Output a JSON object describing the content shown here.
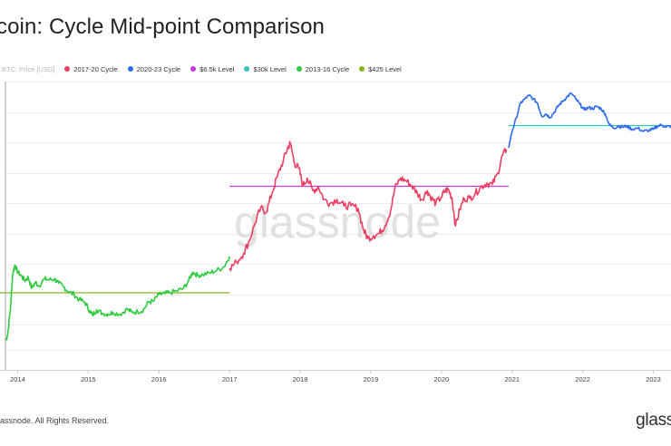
{
  "title": "coin: Cycle Mid-point Comparison",
  "watermark": "glassnode",
  "footer": {
    "copyright": "lassnode. All Rights Reserved.",
    "logo": "glass"
  },
  "colors": {
    "cycle_2017_20": "#ee3e62",
    "cycle_2020_23": "#2f6cf0",
    "level_6_5k": "#c23bd4",
    "level_30k": "#35c2c0",
    "cycle_2013_16": "#2ecb3e",
    "level_425": "#86b51a"
  },
  "legend": [
    {
      "label": "BTC: Price [USD]",
      "color": "#cccccc",
      "muted": true
    },
    {
      "label": "2017-20 Cycle",
      "color": "#ee3e62"
    },
    {
      "label": "2020-23 Cycle",
      "color": "#2f6cf0"
    },
    {
      "label": "$6.5k Level",
      "color": "#c23bd4"
    },
    {
      "label": "$30k Level",
      "color": "#35c2c0"
    },
    {
      "label": "2013-16 Cycle",
      "color": "#2ecb3e"
    },
    {
      "label": "$425 Level",
      "color": "#86b51a"
    }
  ],
  "chart_data": {
    "type": "line",
    "title": "coin: Cycle Mid-point Comparison",
    "x_axis_labels": [
      "2014",
      "2015",
      "2016",
      "2017",
      "2018",
      "2019",
      "2020",
      "2021",
      "2022",
      "2023"
    ],
    "x_range": [
      2013.75,
      2023.25
    ],
    "y_scale": "log",
    "y_tick_labels": [],
    "grid": true,
    "legend_position": "top-left",
    "series": [
      {
        "name": "2013-16 Cycle",
        "color": "#2ecb3e",
        "points": [
          [
            2013.83,
            0.02
          ],
          [
            2013.86,
            0.1
          ],
          [
            2013.9,
            0.42
          ],
          [
            2013.93,
            0.8
          ],
          [
            2013.96,
            0.9
          ],
          [
            2014.0,
            0.82
          ],
          [
            2014.05,
            0.78
          ],
          [
            2014.1,
            0.72
          ],
          [
            2014.15,
            0.76
          ],
          [
            2014.2,
            0.63
          ],
          [
            2014.25,
            0.7
          ],
          [
            2014.3,
            0.66
          ],
          [
            2014.38,
            0.74
          ],
          [
            2014.45,
            0.73
          ],
          [
            2014.52,
            0.74
          ],
          [
            2014.58,
            0.69
          ],
          [
            2014.65,
            0.65
          ],
          [
            2014.72,
            0.59
          ],
          [
            2014.8,
            0.56
          ],
          [
            2014.87,
            0.5
          ],
          [
            2014.95,
            0.47
          ],
          [
            2015.02,
            0.37
          ],
          [
            2015.06,
            0.32
          ],
          [
            2015.12,
            0.38
          ],
          [
            2015.2,
            0.34
          ],
          [
            2015.28,
            0.33
          ],
          [
            2015.35,
            0.35
          ],
          [
            2015.45,
            0.33
          ],
          [
            2015.55,
            0.39
          ],
          [
            2015.62,
            0.35
          ],
          [
            2015.7,
            0.36
          ],
          [
            2015.78,
            0.38
          ],
          [
            2015.85,
            0.47
          ],
          [
            2015.92,
            0.48
          ],
          [
            2016.0,
            0.56
          ],
          [
            2016.08,
            0.57
          ],
          [
            2016.15,
            0.58
          ],
          [
            2016.25,
            0.6
          ],
          [
            2016.35,
            0.63
          ],
          [
            2016.42,
            0.72
          ],
          [
            2016.48,
            0.82
          ],
          [
            2016.55,
            0.78
          ],
          [
            2016.62,
            0.79
          ],
          [
            2016.72,
            0.81
          ],
          [
            2016.82,
            0.84
          ],
          [
            2016.92,
            0.88
          ],
          [
            2017.0,
            1.0
          ]
        ]
      },
      {
        "name": "2017-20 Cycle",
        "color": "#ee3e62",
        "points": [
          [
            2017.0,
            0.0
          ],
          [
            2017.1,
            0.05
          ],
          [
            2017.2,
            0.12
          ],
          [
            2017.28,
            0.22
          ],
          [
            2017.36,
            0.36
          ],
          [
            2017.44,
            0.48
          ],
          [
            2017.52,
            0.45
          ],
          [
            2017.6,
            0.6
          ],
          [
            2017.68,
            0.74
          ],
          [
            2017.76,
            0.86
          ],
          [
            2017.82,
            0.96
          ],
          [
            2017.86,
            1.0
          ],
          [
            2017.92,
            0.84
          ],
          [
            2017.98,
            0.8
          ],
          [
            2018.04,
            0.66
          ],
          [
            2018.1,
            0.72
          ],
          [
            2018.18,
            0.62
          ],
          [
            2018.26,
            0.65
          ],
          [
            2018.34,
            0.55
          ],
          [
            2018.42,
            0.52
          ],
          [
            2018.52,
            0.55
          ],
          [
            2018.62,
            0.5
          ],
          [
            2018.72,
            0.5
          ],
          [
            2018.82,
            0.48
          ],
          [
            2018.9,
            0.3
          ],
          [
            2018.96,
            0.24
          ],
          [
            2019.04,
            0.26
          ],
          [
            2019.12,
            0.28
          ],
          [
            2019.2,
            0.34
          ],
          [
            2019.28,
            0.46
          ],
          [
            2019.34,
            0.64
          ],
          [
            2019.42,
            0.72
          ],
          [
            2019.5,
            0.7
          ],
          [
            2019.58,
            0.66
          ],
          [
            2019.66,
            0.6
          ],
          [
            2019.72,
            0.55
          ],
          [
            2019.8,
            0.62
          ],
          [
            2019.86,
            0.56
          ],
          [
            2019.92,
            0.52
          ],
          [
            2020.0,
            0.57
          ],
          [
            2020.05,
            0.62
          ],
          [
            2020.1,
            0.63
          ],
          [
            2020.15,
            0.56
          ],
          [
            2020.2,
            0.34
          ],
          [
            2020.26,
            0.47
          ],
          [
            2020.32,
            0.56
          ],
          [
            2020.4,
            0.56
          ],
          [
            2020.48,
            0.6
          ],
          [
            2020.56,
            0.65
          ],
          [
            2020.64,
            0.68
          ],
          [
            2020.72,
            0.67
          ],
          [
            2020.8,
            0.76
          ],
          [
            2020.86,
            0.9
          ],
          [
            2020.92,
            0.95
          ]
        ]
      },
      {
        "name": "2020-23 Cycle",
        "color": "#2f6cf0",
        "points": [
          [
            2020.95,
            0.0
          ],
          [
            2021.0,
            0.3
          ],
          [
            2021.06,
            0.55
          ],
          [
            2021.12,
            0.82
          ],
          [
            2021.18,
            0.9
          ],
          [
            2021.24,
            0.96
          ],
          [
            2021.3,
            0.9
          ],
          [
            2021.36,
            0.82
          ],
          [
            2021.42,
            0.58
          ],
          [
            2021.48,
            0.62
          ],
          [
            2021.54,
            0.56
          ],
          [
            2021.6,
            0.66
          ],
          [
            2021.66,
            0.78
          ],
          [
            2021.72,
            0.86
          ],
          [
            2021.78,
            0.94
          ],
          [
            2021.84,
            1.0
          ],
          [
            2021.9,
            0.9
          ],
          [
            2021.96,
            0.8
          ],
          [
            2022.02,
            0.7
          ],
          [
            2022.08,
            0.74
          ],
          [
            2022.14,
            0.72
          ],
          [
            2022.2,
            0.76
          ],
          [
            2022.26,
            0.72
          ],
          [
            2022.32,
            0.62
          ],
          [
            2022.38,
            0.42
          ],
          [
            2022.44,
            0.36
          ],
          [
            2022.5,
            0.4
          ],
          [
            2022.56,
            0.38
          ],
          [
            2022.62,
            0.4
          ],
          [
            2022.7,
            0.34
          ],
          [
            2022.78,
            0.36
          ],
          [
            2022.86,
            0.3
          ],
          [
            2022.94,
            0.32
          ],
          [
            2023.0,
            0.34
          ],
          [
            2023.06,
            0.4
          ],
          [
            2023.12,
            0.42
          ],
          [
            2023.18,
            0.38
          ],
          [
            2023.25,
            0.4
          ]
        ]
      }
    ],
    "levels": [
      {
        "name": "$425 Level",
        "color": "#86b51a",
        "x_start": 2013.75,
        "x_end": 2017.0
      },
      {
        "name": "$6.5k Level",
        "color": "#c23bd4",
        "x_start": 2017.0,
        "x_end": 2020.95
      },
      {
        "name": "$30k Level",
        "color": "#35c2c0",
        "x_start": 2020.95,
        "x_end": 2023.25
      }
    ]
  }
}
